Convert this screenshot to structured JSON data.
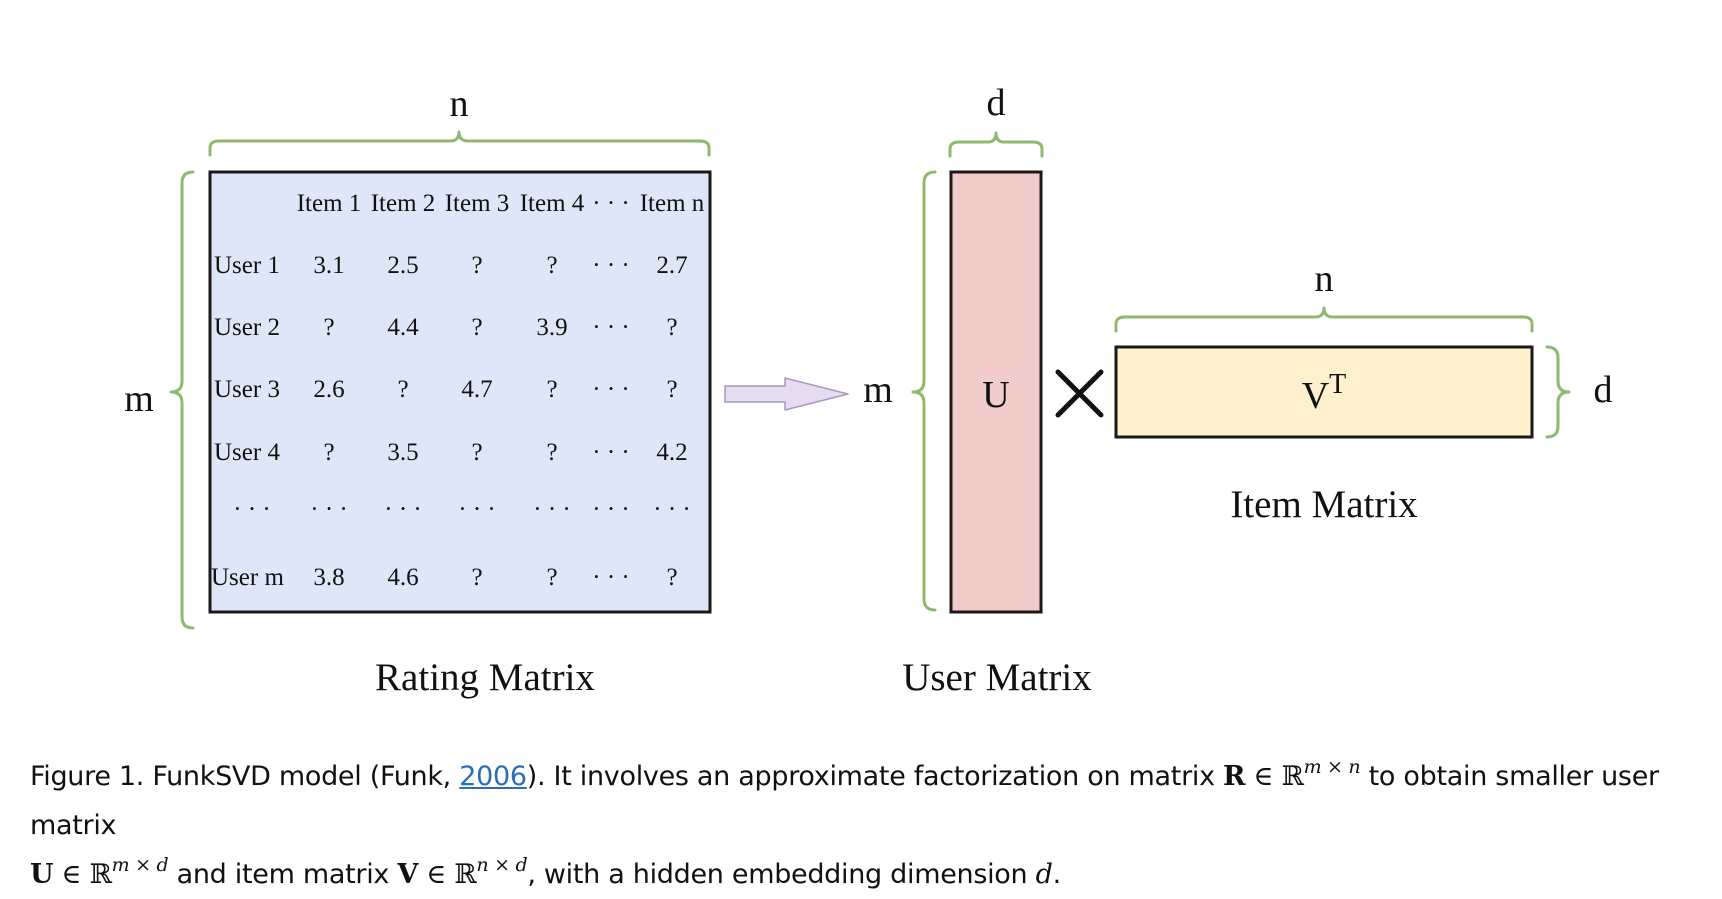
{
  "rating_matrix": {
    "title": "Rating Matrix",
    "dim_top": "n",
    "dim_left": "m",
    "column_headers": [
      "Item 1",
      "Item 2",
      "Item 3",
      "Item 4",
      "· · ·",
      "Item n"
    ],
    "rows": [
      {
        "label": "User 1",
        "cells": [
          "3.1",
          "2.5",
          "?",
          "?",
          "· · ·",
          "2.7"
        ]
      },
      {
        "label": "User 2",
        "cells": [
          "?",
          "4.4",
          "?",
          "3.9",
          "· · ·",
          "?"
        ]
      },
      {
        "label": "User 3",
        "cells": [
          "2.6",
          "?",
          "4.7",
          "?",
          "· · ·",
          "?"
        ]
      },
      {
        "label": "User 4",
        "cells": [
          "?",
          "3.5",
          "?",
          "?",
          "· · ·",
          "4.2"
        ]
      },
      {
        "label": "· · ·",
        "cells": [
          "· · ·",
          "· · ·",
          "· · ·",
          "· · ·",
          "· · ·",
          "· · ·"
        ]
      },
      {
        "label": "User m",
        "cells": [
          "3.8",
          "4.6",
          "?",
          "?",
          "· · ·",
          "?"
        ]
      }
    ],
    "fill": "#dde7f8"
  },
  "user_matrix": {
    "title": "User Matrix",
    "symbol": "U",
    "dim_top": "d",
    "dim_left": "m",
    "fill": "#f2cccb"
  },
  "times_symbol": "×",
  "item_matrix": {
    "title": "Item Matrix",
    "symbol": "V",
    "superscript": "T",
    "dim_top": "n",
    "dim_right": "d",
    "fill": "#fcf1cc"
  },
  "colors": {
    "brace": "#8fba6e",
    "arrow_fill": "#e6dcef",
    "arrow_stroke": "#a797c2",
    "border": "#1a1a1a",
    "link": "#2a6fb5"
  },
  "caption": {
    "prefix": "Figure 1. FunkSVD model (Funk, ",
    "citation_year": "2006",
    "t1": "). It involves an approximate factorization on matrix ",
    "R": "R",
    "in1": " ∈ ℝ",
    "sup1": "m × n",
    "t2": " to obtain smaller user matrix ",
    "U": "U",
    "in2": " ∈ ℝ",
    "sup2": "m × d",
    "t3": " and item matrix ",
    "V": "V",
    "in3": " ∈ ℝ",
    "sup3": "n × d",
    "t4": ", with a hidden embedding dimension ",
    "d": "d",
    "t5": "."
  }
}
